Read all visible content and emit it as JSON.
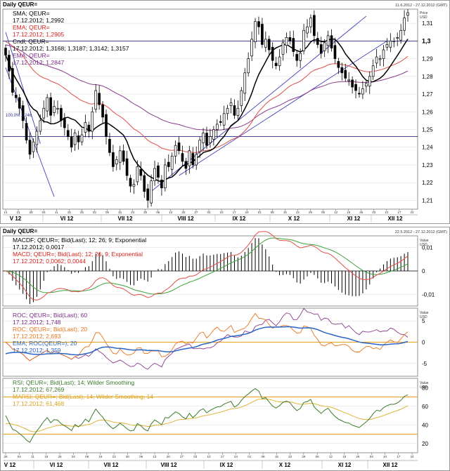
{
  "header": {
    "top_title": "Daily QEUR=",
    "top_range": "11.6.2012 - 27.12.2012 (GMT)",
    "bottom_title": "Daily QEUR=",
    "bottom_range": "22.5.2012 - 27.12.2012 (GMT)"
  },
  "price_panel": {
    "axis_title": "Price",
    "axis_unit": "USD",
    "legend": [
      {
        "line1": "SMA; QEUR=",
        "line2": "17.12.2012; 1,2992",
        "color": "#000000"
      },
      {
        "line1": "EMA; QEUR=",
        "line2": "17.12.2012; 1,2905",
        "color": "#d8201c"
      },
      {
        "line1": "Cndl; QEUR=",
        "line2": "17.12.2012; 1,3168; 1,3187; 1,3142; 1,3157",
        "color": "#000000"
      },
      {
        "line1": "EMA; QEUR=",
        "line2": "17.12.2012; 1,2847",
        "color": "#7a2a86"
      }
    ],
    "fib_label": "100,0% 1,246",
    "y_ticks": [
      "1,31",
      "1,3",
      "1,29",
      "1,28",
      "1,27",
      "1,26",
      "1,25",
      "1,24",
      "1,23",
      "1,22",
      "1,21"
    ],
    "days": [
      "14",
      "21",
      "28",
      "04",
      "11",
      "18",
      "25",
      "02",
      "09",
      "16",
      "23",
      "30",
      "06",
      "13",
      "20",
      "27",
      "03",
      "10",
      "17",
      "24",
      "01",
      "08",
      "15",
      "22",
      "29",
      "05",
      "12",
      "19",
      "26",
      "03",
      "10",
      "17",
      "24"
    ],
    "months": [
      "V 12",
      "VI 12",
      "VII 12",
      "VIII 12",
      "IX 12",
      "X 12",
      "XI 12",
      "XII 12"
    ]
  },
  "macd_panel": {
    "axis_title": "Value",
    "axis_unit": "USD",
    "legend": [
      {
        "line1": "MACDF; QEUR=; Bid(Last);  12; 26; 9; Exponential",
        "line2": "17.12.2012; 0,0017",
        "color": "#000000"
      },
      {
        "line1": "MACD; QEUR=; Bid(Last);  12; 26; 9; Exponential",
        "line2": "17.12.2012; 0,0062; 0,0044",
        "color": "#d8201c",
        "line2_extra": "0,0044",
        "line2_extra_color": "#2a9a2a"
      }
    ],
    "y_ticks": [
      "0,01",
      "0",
      "-0,01"
    ]
  },
  "roc_panel": {
    "axis_title": "Value",
    "axis_unit": "USD",
    "legend": [
      {
        "line1": "ROC; QEUR=; Bid(Last);  60",
        "line2": "17.12.2012; 1,748",
        "color": "#7a2a86"
      },
      {
        "line1": "ROC; QEUR=; Bid(Last);  20",
        "line2": "17.12.2012; 2,693",
        "color": "#e8731c"
      },
      {
        "line1": "EMA; ROC(QEUR=);  20",
        "line2": "17.12.2012; 1,359",
        "color": "#2a64c8"
      }
    ],
    "y_ticks": [
      "5",
      "0",
      "-5"
    ]
  },
  "rsi_panel": {
    "axis_title": "Value",
    "axis_unit": "USD",
    "legend": [
      {
        "line1": "RSI; QEUR=; Bid(Last);  14; Wilder Smoothing",
        "line2": "17.12.2012; 67,269",
        "color": "#3c7a2a"
      },
      {
        "line1": "MARSI; QEUR=; Bid(Last);  14; Wilder Smoothing; 14",
        "line2": "17.12.2012; 61,468",
        "color": "#d9a21c"
      }
    ],
    "y_ticks": [
      "80",
      "60",
      "40",
      "20"
    ],
    "days": [
      "28",
      "04",
      "11",
      "18",
      "25",
      "02",
      "09",
      "16",
      "23",
      "30",
      "06",
      "13",
      "20",
      "27",
      "03",
      "10",
      "17",
      "24",
      "01",
      "08",
      "15",
      "22",
      "29",
      "05",
      "12",
      "19",
      "26",
      "03",
      "10",
      "17",
      "24"
    ],
    "months": [
      "V 12",
      "VI 12",
      "VII 12",
      "VIII 12",
      "IX 12",
      "X 12",
      "XI 12",
      "XII 12"
    ]
  },
  "chart_data": {
    "type": "line",
    "description_series": [
      {
        "name": "SMA; QEUR=",
        "last": 1.2992
      },
      {
        "name": "EMA; QEUR=",
        "last": 1.2905
      },
      {
        "name": "EMA; QEUR=",
        "last": 1.2847
      }
    ],
    "candle_last": {
      "open": 1.3168,
      "high": 1.3187,
      "low": 1.3142,
      "close": 1.3157
    },
    "price_ylim": [
      1.205,
      1.318
    ],
    "horizontal_levels": [
      1.3,
      1.246
    ],
    "close": [
      1.292,
      1.283,
      1.271,
      1.268,
      1.262,
      1.255,
      1.244,
      1.236,
      1.243,
      1.249,
      1.255,
      1.262,
      1.268,
      1.258,
      1.263,
      1.262,
      1.255,
      1.251,
      1.246,
      1.24,
      1.248,
      1.243,
      1.247,
      1.254,
      1.249,
      1.26,
      1.272,
      1.264,
      1.257,
      1.246,
      1.237,
      1.229,
      1.233,
      1.238,
      1.232,
      1.224,
      1.218,
      1.219,
      1.229,
      1.224,
      1.215,
      1.21,
      1.221,
      1.228,
      1.223,
      1.217,
      1.23,
      1.229,
      1.235,
      1.241,
      1.238,
      1.232,
      1.228,
      1.238,
      1.23,
      1.236,
      1.244,
      1.248,
      1.241,
      1.246,
      1.25,
      1.253,
      1.254,
      1.259,
      1.262,
      1.265,
      1.258,
      1.262,
      1.272,
      1.282,
      1.29,
      1.301,
      1.311,
      1.308,
      1.298,
      1.301,
      1.295,
      1.289,
      1.286,
      1.291,
      1.299,
      1.302,
      1.3,
      1.294,
      1.289,
      1.293,
      1.306,
      1.308,
      1.313,
      1.303,
      1.298,
      1.293,
      1.299,
      1.303,
      1.296,
      1.29,
      1.285,
      1.282,
      1.279,
      1.278,
      1.274,
      1.272,
      1.27,
      1.273,
      1.276,
      1.28,
      1.286,
      1.291,
      1.29,
      1.295,
      1.298,
      1.3,
      1.3,
      1.302,
      1.306,
      1.313,
      1.316
    ],
    "macd_ylim": [
      -0.015,
      0.015
    ],
    "roc_ylim": [
      -8,
      8
    ],
    "rsi_ylim": [
      10,
      90
    ],
    "rsi_levels": [
      70,
      30
    ]
  }
}
